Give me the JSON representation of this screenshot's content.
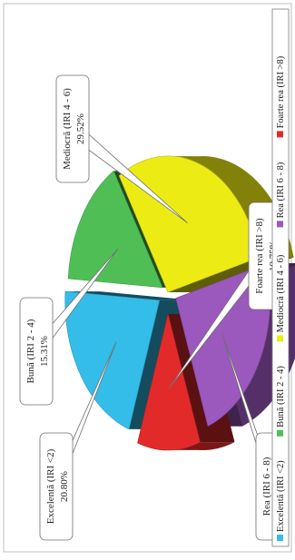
{
  "chart_data": {
    "type": "pie",
    "style": "3d-exploded",
    "orientation": "rotated-90-ccw",
    "slices": [
      {
        "name": "Excelentă (IRI <2)",
        "value": 20.8,
        "label_line1": "Excelentă (IRI <2)",
        "label_line2": "20.80%",
        "color": "#33bde8"
      },
      {
        "name": "Bună (IRI 2 - 4)",
        "value": 15.31,
        "label_line1": "Bună (IRI 2 - 4)",
        "label_line2": "15.31%",
        "color": "#4fbf55"
      },
      {
        "name": "Mediocră (IRI 4 - 6)",
        "value": 29.52,
        "label_line1": "Mediocră (IRI 4 - 6)",
        "label_line2": "29.52%",
        "color": "#ecec14"
      },
      {
        "name": "Rea (IRI 6 - 8)",
        "value": 23.61,
        "label_line1": "Rea (IRI 6 - 8)",
        "label_line2": "23.61%",
        "color": "#9b58bd"
      },
      {
        "name": "Foarte rea (IRI >8)",
        "value": 10.75,
        "label_line1": "Foarte rea (IRI >8)",
        "label_line2": "10.75%",
        "color": "#e32a2a"
      }
    ],
    "legend": {
      "placement": "right",
      "entries": [
        "Excelentă (IRI <2)",
        "Bună (IRI 2 - 4)",
        "Mediocră (IRI 4 - 6)",
        "Rea (IRI 6 - 8)",
        "Foarte rea (IRI >8)"
      ]
    }
  }
}
